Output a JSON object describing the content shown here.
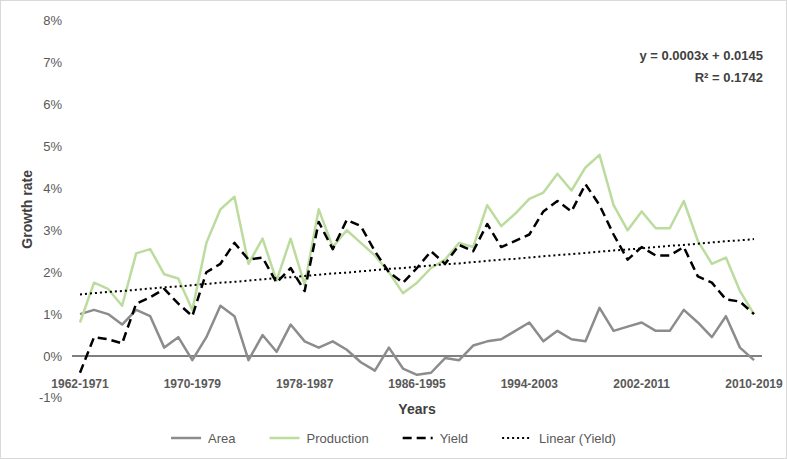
{
  "chart_data": {
    "type": "line",
    "xlabel": "Years",
    "ylabel": "Growth rate",
    "annotations": [
      "y = 0.0003x + 0.0145",
      "R² = 0.1742"
    ],
    "categories": [
      "1962-1971",
      null,
      null,
      null,
      null,
      null,
      null,
      null,
      "1970-1979",
      null,
      null,
      null,
      null,
      null,
      null,
      null,
      "1978-1987",
      null,
      null,
      null,
      null,
      null,
      null,
      null,
      "1986-1995",
      null,
      null,
      null,
      null,
      null,
      null,
      null,
      "1994-2003",
      null,
      null,
      null,
      null,
      null,
      null,
      null,
      "2002-2011",
      null,
      null,
      null,
      null,
      null,
      null,
      null,
      "2010-2019"
    ],
    "series": [
      {
        "name": "Area",
        "color": "#8c8c8c",
        "line_style": "solid",
        "values": [
          1.0,
          1.1,
          1.0,
          0.75,
          1.1,
          0.95,
          0.2,
          0.45,
          -0.1,
          0.45,
          1.2,
          0.95,
          -0.1,
          0.5,
          0.1,
          0.75,
          0.35,
          0.2,
          0.35,
          0.15,
          -0.15,
          -0.35,
          0.2,
          -0.3,
          -0.45,
          -0.4,
          -0.05,
          -0.1,
          0.25,
          0.35,
          0.4,
          0.6,
          0.8,
          0.35,
          0.6,
          0.4,
          0.35,
          1.15,
          0.6,
          0.7,
          0.8,
          0.6,
          0.6,
          1.1,
          0.8,
          0.45,
          0.95,
          0.2,
          -0.1
        ]
      },
      {
        "name": "Production",
        "color": "#bcdc9e",
        "line_style": "solid",
        "values": [
          0.8,
          1.75,
          1.6,
          1.2,
          2.45,
          2.55,
          1.95,
          1.85,
          1.1,
          2.7,
          3.5,
          3.8,
          2.2,
          2.8,
          1.8,
          2.8,
          1.7,
          3.5,
          2.6,
          3.0,
          2.7,
          2.4,
          2.0,
          1.5,
          1.75,
          2.1,
          2.3,
          2.7,
          2.6,
          3.6,
          3.1,
          3.4,
          3.75,
          3.9,
          4.35,
          3.95,
          4.5,
          4.8,
          3.6,
          3.0,
          3.45,
          3.05,
          3.05,
          3.7,
          2.75,
          2.2,
          2.35,
          1.55,
          1.0
        ]
      },
      {
        "name": "Yield",
        "color": "#000000",
        "line_style": "dashed",
        "values": [
          -0.4,
          0.45,
          0.4,
          0.3,
          1.25,
          1.4,
          1.6,
          1.25,
          0.95,
          2.0,
          2.2,
          2.7,
          2.3,
          2.35,
          1.75,
          2.1,
          1.55,
          3.2,
          2.55,
          3.25,
          3.1,
          2.5,
          2.0,
          1.75,
          2.1,
          2.5,
          2.2,
          2.65,
          2.5,
          3.15,
          2.6,
          2.75,
          2.9,
          3.45,
          3.7,
          3.45,
          4.1,
          3.6,
          2.9,
          2.3,
          2.6,
          2.4,
          2.4,
          2.6,
          1.9,
          1.75,
          1.35,
          1.3,
          1.0
        ]
      },
      {
        "name": "Linear (Yield)",
        "color": "#000000",
        "line_style": "dotted",
        "values": [
          1.47,
          1.5,
          1.53,
          1.55,
          1.58,
          1.61,
          1.64,
          1.66,
          1.69,
          1.72,
          1.75,
          1.77,
          1.8,
          1.83,
          1.86,
          1.88,
          1.91,
          1.94,
          1.97,
          1.99,
          2.02,
          2.05,
          2.08,
          2.1,
          2.13,
          2.16,
          2.19,
          2.21,
          2.24,
          2.27,
          2.3,
          2.32,
          2.35,
          2.38,
          2.41,
          2.43,
          2.46,
          2.49,
          2.52,
          2.54,
          2.57,
          2.6,
          2.63,
          2.65,
          2.68,
          2.71,
          2.74,
          2.76,
          2.79
        ]
      }
    ],
    "ylim": [
      -1,
      8
    ],
    "yticks": [
      {
        "value": -1,
        "label": "-1%"
      },
      {
        "value": 0,
        "label": "0%"
      },
      {
        "value": 1,
        "label": "1%"
      },
      {
        "value": 2,
        "label": "2%"
      },
      {
        "value": 3,
        "label": "3%"
      },
      {
        "value": 4,
        "label": "4%"
      },
      {
        "value": 5,
        "label": "5%"
      },
      {
        "value": 6,
        "label": "6%"
      },
      {
        "value": 7,
        "label": "7%"
      },
      {
        "value": 8,
        "label": "8%"
      }
    ],
    "grid": false,
    "legend": "bottom"
  }
}
